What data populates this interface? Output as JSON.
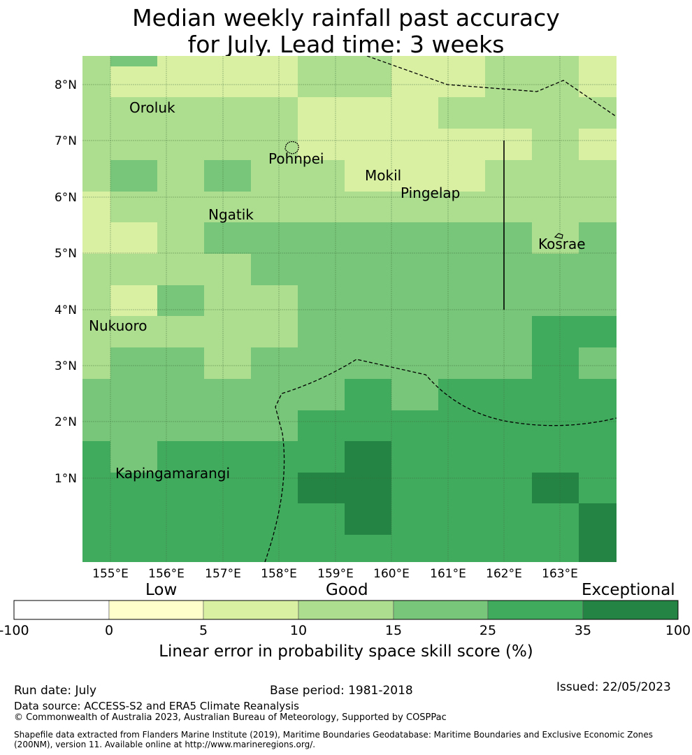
{
  "title_line1": "Median weekly rainfall past accuracy",
  "title_line2": "for July. Lead time: 3 weeks",
  "map": {
    "lat_labels": [
      "8°N",
      "7°N",
      "6°N",
      "5°N",
      "4°N",
      "3°N",
      "2°N",
      "1°N"
    ],
    "lon_labels": [
      "155°E",
      "156°E",
      "157°E",
      "158°E",
      "159°E",
      "160°E",
      "161°E",
      "162°E",
      "163°E"
    ],
    "places": [
      "Oroluk",
      "Pohnpei",
      "Mokil",
      "Pingelap",
      "Ngatik",
      "Kosrae",
      "Nukuoro",
      "Kapingamarangi"
    ]
  },
  "colorbar": {
    "category_labels": [
      "Low",
      "Good",
      "Exceptional"
    ],
    "ticks": [
      "-100",
      "0",
      "5",
      "10",
      "15",
      "25",
      "35",
      "100"
    ],
    "colors": [
      "#ffffff",
      "#ffffcc",
      "#d9f0a3",
      "#addd8e",
      "#78c679",
      "#41ab5d",
      "#238443"
    ],
    "axis_label": "Linear error in probability space skill score (%)"
  },
  "footer": {
    "run_date": "Run date: July",
    "base_period": "Base period: 1981-2018",
    "issued": "Issued: 22/05/2023",
    "data_source": "Data source: ACCESS-S2 and ERA5 Climate Reanalysis",
    "copyright": "© Commonwealth of Australia 2023, Australian Bureau of Meteorology, Supported by COSPPac",
    "shapefile_line1": "Shapefile data extracted from Flanders Marine Institute (2019), Maritime Boundaries Geodatabase: Maritime Boundaries and Exclusive Economic Zones",
    "shapefile_line2": "(200NM), version 11. Available online at http://www.marineregions.org/."
  }
}
